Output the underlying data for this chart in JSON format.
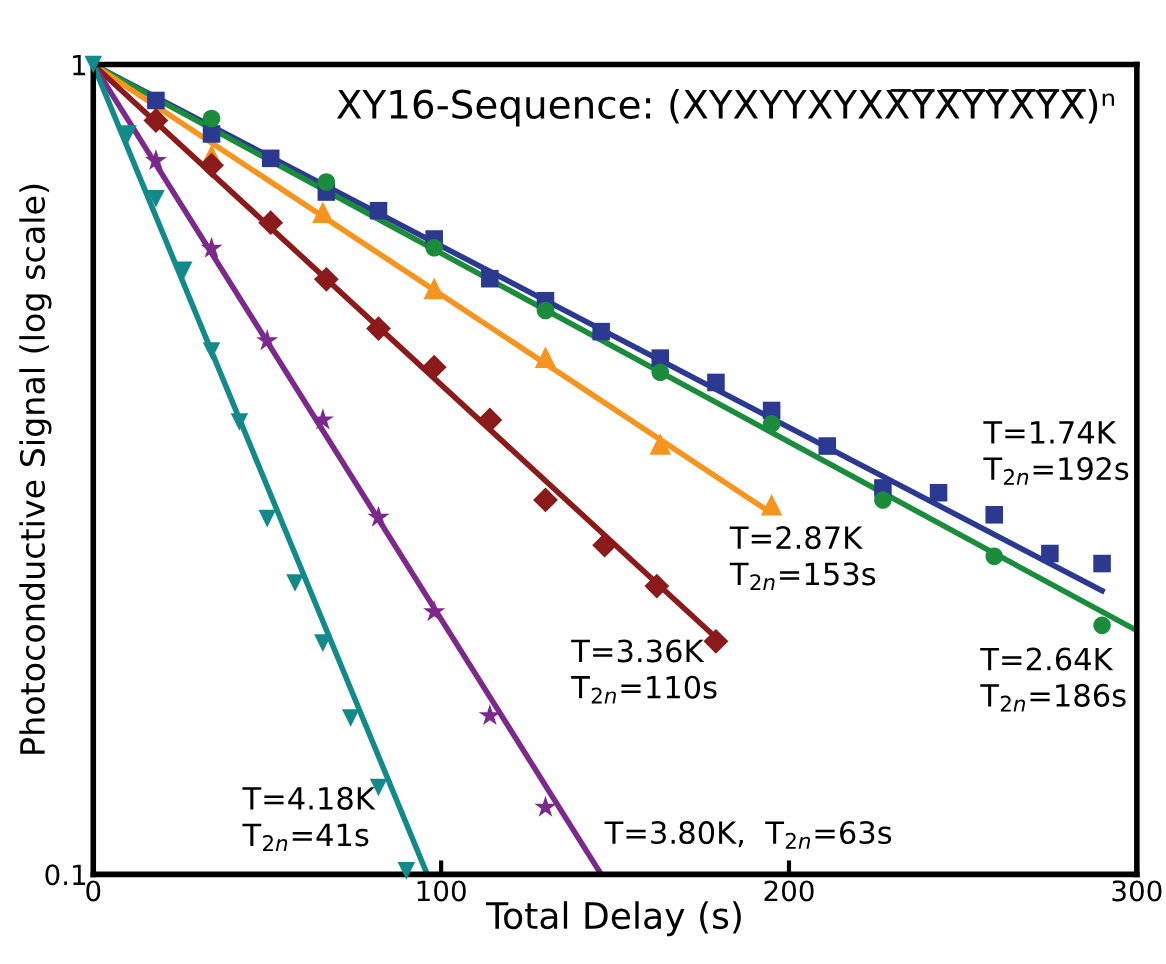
{
  "chart_data": {
    "type": "scatter",
    "title": "XY16-Sequence: (XYXYYXYXX̅Y̅X̅Y̅Y̅X̅Y̅X̅)ⁿ",
    "xlabel": "Total Delay (s)",
    "ylabel": "Photoconductive Signal (log scale)",
    "log": "y",
    "xlim": [
      0,
      300
    ],
    "ylim": [
      0.1,
      1
    ],
    "xticks": [
      0,
      100,
      200,
      300
    ],
    "yticks": [
      0.1,
      1
    ],
    "grid": false,
    "legend": false,
    "series": [
      {
        "marker": "square",
        "color": "#2b3990",
        "x": [
          18,
          34,
          51,
          67,
          82,
          98,
          114,
          130,
          146,
          163,
          179,
          195,
          211,
          227,
          243,
          259,
          275,
          290
        ],
        "values": [
          0.903,
          0.821,
          0.766,
          0.696,
          0.66,
          0.609,
          0.544,
          0.511,
          0.468,
          0.434,
          0.405,
          0.374,
          0.338,
          0.3,
          0.296,
          0.278,
          0.249,
          0.242
        ]
      },
      {
        "type": "line",
        "marker": "none",
        "color": "#2b3990",
        "x": [
          0,
          290
        ],
        "values": [
          1,
          0.224
        ]
      },
      {
        "marker": "circle",
        "color": "#1a8c3c",
        "x": [
          34,
          67,
          98,
          130,
          163,
          195,
          227,
          259,
          290
        ],
        "values": [
          0.858,
          0.716,
          0.594,
          0.497,
          0.417,
          0.36,
          0.29,
          0.247,
          0.203
        ]
      },
      {
        "type": "line",
        "marker": "none",
        "color": "#1a8c3c",
        "x": [
          0,
          300
        ],
        "values": [
          1,
          0.2
        ]
      },
      {
        "marker": "triangle",
        "color": "#f7941d",
        "x": [
          34,
          66,
          98,
          130,
          163,
          195
        ],
        "values": [
          0.773,
          0.657,
          0.529,
          0.435,
          0.34,
          0.286
        ]
      },
      {
        "type": "line",
        "marker": "none",
        "color": "#f7941d",
        "x": [
          0,
          194
        ],
        "values": [
          1,
          0.281
        ]
      },
      {
        "marker": "diamond",
        "color": "#8b1a1a",
        "x": [
          18,
          34,
          51,
          67,
          82,
          98,
          114,
          130,
          147,
          162,
          179
        ],
        "values": [
          0.853,
          0.751,
          0.638,
          0.543,
          0.472,
          0.423,
          0.364,
          0.29,
          0.255,
          0.227,
          0.194
        ]
      },
      {
        "type": "line",
        "marker": "none",
        "color": "#8b1a1a",
        "x": [
          0,
          179
        ],
        "values": [
          1,
          0.196
        ]
      },
      {
        "marker": "star",
        "color": "#7b2a8b",
        "x": [
          18,
          34,
          50,
          66,
          82,
          98,
          114,
          130
        ],
        "values": [
          0.761,
          0.593,
          0.456,
          0.364,
          0.276,
          0.211,
          0.157,
          0.121
        ]
      },
      {
        "type": "line",
        "marker": "none",
        "color": "#7b2a8b",
        "x": [
          0,
          146
        ],
        "values": [
          1,
          0.1
        ]
      },
      {
        "marker": "triangle_down",
        "color": "#138a8a",
        "x": [
          0,
          10,
          18,
          26,
          34,
          42,
          50,
          58,
          66,
          74,
          82,
          90
        ],
        "values": [
          1,
          0.821,
          0.683,
          0.557,
          0.443,
          0.362,
          0.275,
          0.229,
          0.193,
          0.156,
          0.128,
          0.101
        ]
      },
      {
        "type": "line",
        "marker": "none",
        "color": "#138a8a",
        "x": [
          0,
          96
        ],
        "values": [
          1,
          0.1
        ]
      }
    ],
    "annotations": [
      "T=1.74K\nT$_{2n}$=192s",
      "T=2.87K\nT$_{2n}$=153s",
      "T=2.64K\nT$_{2n}$=186s",
      "T=3.36K\nT$_{2n}$=110s",
      "T=4.18K\nT$_{2n}$=41s",
      "T=3.80K,  T$_{2n}$=63s"
    ]
  }
}
